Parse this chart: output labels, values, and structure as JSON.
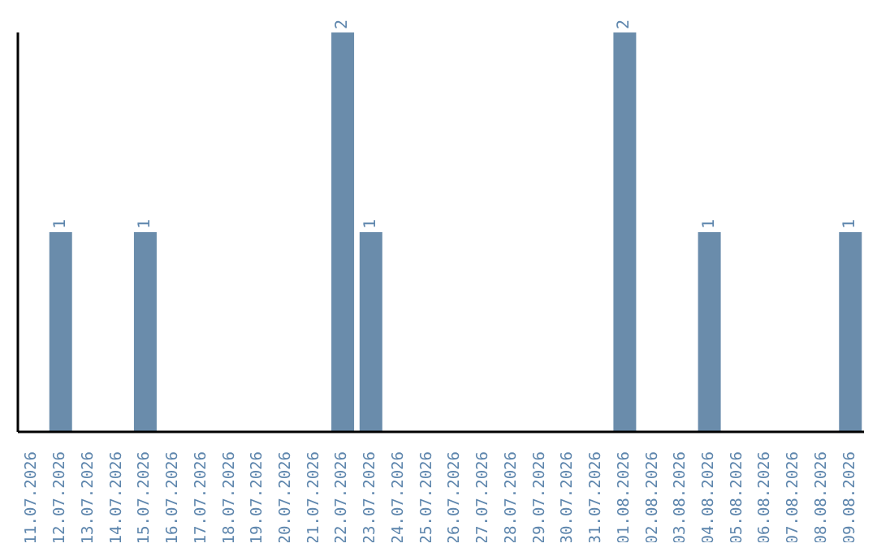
{
  "chart_data": {
    "type": "bar",
    "categories": [
      "11.07.2026",
      "12.07.2026",
      "13.07.2026",
      "14.07.2026",
      "15.07.2026",
      "16.07.2026",
      "17.07.2026",
      "18.07.2026",
      "19.07.2026",
      "20.07.2026",
      "21.07.2026",
      "22.07.2026",
      "23.07.2026",
      "24.07.2026",
      "25.07.2026",
      "26.07.2026",
      "27.07.2026",
      "28.07.2026",
      "29.07.2026",
      "30.07.2026",
      "31.07.2026",
      "01.08.2026",
      "02.08.2026",
      "03.08.2026",
      "04.08.2026",
      "05.08.2026",
      "06.08.2026",
      "07.08.2026",
      "08.08.2026",
      "09.08.2026"
    ],
    "values": [
      0,
      1,
      0,
      0,
      1,
      0,
      0,
      0,
      0,
      0,
      0,
      2,
      1,
      0,
      0,
      0,
      0,
      0,
      0,
      0,
      0,
      2,
      0,
      0,
      1,
      0,
      0,
      0,
      0,
      1
    ],
    "value_labels": [
      null,
      "1",
      null,
      null,
      "1",
      null,
      null,
      null,
      null,
      null,
      null,
      "2",
      "1",
      null,
      null,
      null,
      null,
      null,
      null,
      null,
      null,
      "2",
      null,
      null,
      "1",
      null,
      null,
      null,
      null,
      "1"
    ],
    "color": "#6a8cab",
    "relative": false
  }
}
